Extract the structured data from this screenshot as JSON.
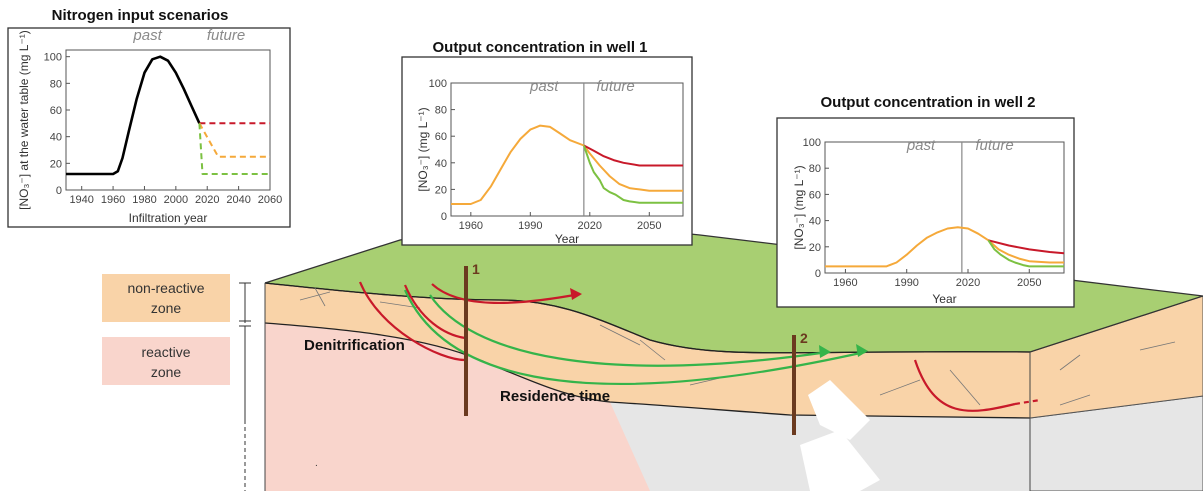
{
  "colors": {
    "grass": "#a8cf72",
    "nonreactive": "#f9d3a8",
    "reactive": "#f9d5cc",
    "grey": "#e6e6e6",
    "red": "#c8192a",
    "orange": "#f5a93a",
    "green": "#7cc142",
    "black": "#000000",
    "well": "#6b3a1f",
    "arrow_green": "#35b44a",
    "arrow_red": "#c8192a"
  },
  "landscape": {
    "zone_nonreactive": [
      "non-reactive",
      "zone"
    ],
    "zone_reactive": [
      "reactive",
      "zone"
    ],
    "denitrification_label": "Denitrification",
    "residence_label": "Residence time",
    "well1_label": "1",
    "well2_label": "2"
  },
  "chart_data": [
    {
      "id": "input",
      "type": "line",
      "title": "Nitrogen input scenarios",
      "xlabel": "Infiltration year",
      "ylabel": "[NO₃⁻] at the water table (mg L⁻¹)",
      "xlim": [
        1930,
        2060
      ],
      "ylim": [
        0,
        105
      ],
      "xticks": [
        1940,
        1960,
        1980,
        2000,
        2020,
        2040,
        2060
      ],
      "yticks": [
        0,
        20,
        40,
        60,
        80,
        100
      ],
      "past_label": "past",
      "future_label": "future",
      "past_x": 1982,
      "future_x": 2032,
      "series": [
        {
          "color": "black",
          "dash": false,
          "x": [
            1930,
            1960,
            1963,
            1966,
            1970,
            1975,
            1980,
            1985,
            1990,
            1995,
            2000,
            2005,
            2010,
            2015
          ],
          "y": [
            12,
            12,
            14,
            24,
            44,
            68,
            88,
            98,
            100,
            97,
            88,
            76,
            63,
            50
          ]
        },
        {
          "color": "red",
          "dash": true,
          "x": [
            2015,
            2060
          ],
          "y": [
            50,
            50
          ]
        },
        {
          "color": "orange",
          "dash": true,
          "x": [
            2015,
            2027,
            2060
          ],
          "y": [
            50,
            25,
            25
          ]
        },
        {
          "color": "green",
          "dash": true,
          "x": [
            2015,
            2017,
            2060
          ],
          "y": [
            50,
            12,
            12
          ]
        }
      ]
    },
    {
      "id": "well1",
      "type": "line",
      "title": "Output concentration in well 1",
      "xlabel": "Year",
      "ylabel": "[NO₃⁻] (mg L⁻¹)",
      "xlim": [
        1950,
        2067
      ],
      "ylim": [
        0,
        100
      ],
      "xticks": [
        1960,
        1990,
        2020,
        2050
      ],
      "yticks": [
        0,
        20,
        40,
        60,
        80,
        100
      ],
      "divider_x": 2017,
      "past_label": "past",
      "future_label": "future",
      "past_x": 1997,
      "future_x": 2033,
      "series": [
        {
          "color": "orange",
          "dash": false,
          "x": [
            1950,
            1960,
            1965,
            1970,
            1975,
            1980,
            1985,
            1990,
            1995,
            2000,
            2005,
            2010,
            2017,
            2020,
            2025,
            2030,
            2035,
            2040,
            2045,
            2050,
            2060,
            2067
          ],
          "y": [
            9,
            9,
            12,
            22,
            35,
            48,
            58,
            65,
            68,
            67,
            62,
            57,
            53,
            47,
            38,
            30,
            24,
            21,
            20,
            19,
            19,
            19
          ]
        },
        {
          "color": "red",
          "dash": false,
          "x": [
            2017,
            2022,
            2027,
            2032,
            2037,
            2045,
            2055,
            2067
          ],
          "y": [
            53,
            49,
            45,
            42,
            40,
            38,
            38,
            38
          ]
        },
        {
          "color": "green",
          "dash": false,
          "x": [
            2017,
            2020,
            2022,
            2025,
            2027,
            2030,
            2033,
            2037,
            2040,
            2045,
            2055,
            2067
          ],
          "y": [
            53,
            40,
            33,
            27,
            21,
            18,
            16,
            12,
            11,
            10,
            10,
            10
          ]
        }
      ]
    },
    {
      "id": "well2",
      "type": "line",
      "title": "Output concentration in well 2",
      "xlabel": "Year",
      "ylabel": "[NO₃⁻] (mg L⁻¹)",
      "xlim": [
        1950,
        2067
      ],
      "ylim": [
        0,
        100
      ],
      "xticks": [
        1960,
        1990,
        2020,
        2050
      ],
      "yticks": [
        0,
        20,
        40,
        60,
        80,
        100
      ],
      "divider_x": 2017,
      "past_label": "past",
      "future_label": "future",
      "past_x": 1997,
      "future_x": 2033,
      "series": [
        {
          "color": "orange",
          "dash": false,
          "x": [
            1950,
            1960,
            1970,
            1980,
            1985,
            1990,
            1995,
            2000,
            2005,
            2010,
            2015,
            2020,
            2025,
            2030,
            2035,
            2040,
            2045,
            2050,
            2060,
            2067
          ],
          "y": [
            5,
            5,
            5,
            5,
            8,
            14,
            21,
            27,
            31,
            34,
            35,
            34,
            30,
            25,
            18,
            14,
            11,
            9,
            8,
            8
          ]
        },
        {
          "color": "red",
          "dash": false,
          "x": [
            2030,
            2040,
            2050,
            2060,
            2067
          ],
          "y": [
            25,
            21,
            18,
            16,
            15
          ]
        },
        {
          "color": "green",
          "dash": false,
          "x": [
            2030,
            2033,
            2036,
            2040,
            2043,
            2047,
            2050,
            2060,
            2067
          ],
          "y": [
            25,
            18,
            14,
            10,
            8,
            6,
            5,
            5,
            5
          ]
        }
      ]
    }
  ]
}
